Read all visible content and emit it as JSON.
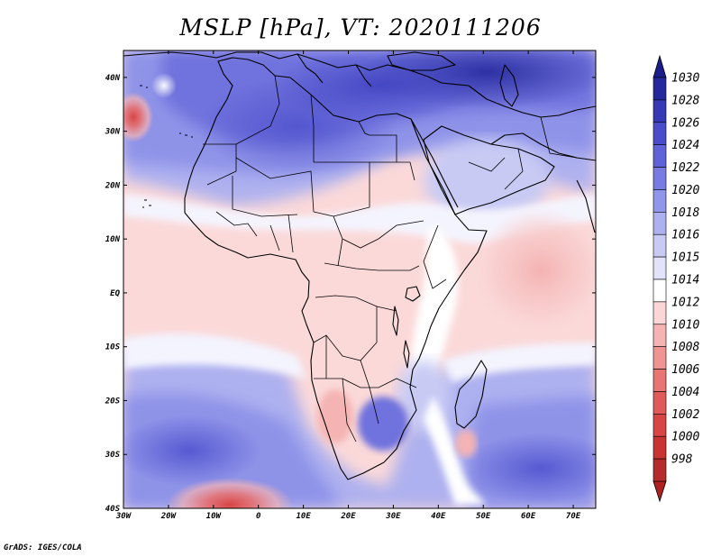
{
  "title": "MSLP [hPa], VT: 2020111206",
  "credit": "GrADS: IGES/COLA",
  "map": {
    "lon_range": [
      -30,
      75
    ],
    "lat_range": [
      -40,
      45
    ],
    "lon_ticks": [
      {
        "value": -30,
        "label": "30W"
      },
      {
        "value": -20,
        "label": "20W"
      },
      {
        "value": -10,
        "label": "10W"
      },
      {
        "value": 0,
        "label": "0"
      },
      {
        "value": 10,
        "label": "10E"
      },
      {
        "value": 20,
        "label": "20E"
      },
      {
        "value": 30,
        "label": "30E"
      },
      {
        "value": 40,
        "label": "40E"
      },
      {
        "value": 50,
        "label": "50E"
      },
      {
        "value": 60,
        "label": "60E"
      },
      {
        "value": 70,
        "label": "70E"
      }
    ],
    "lat_ticks": [
      {
        "value": 40,
        "label": "40N"
      },
      {
        "value": 30,
        "label": "30N"
      },
      {
        "value": 20,
        "label": "20N"
      },
      {
        "value": 10,
        "label": "10N"
      },
      {
        "value": 0,
        "label": "EQ"
      },
      {
        "value": -10,
        "label": "10S"
      },
      {
        "value": -20,
        "label": "20S"
      },
      {
        "value": -30,
        "label": "30S"
      },
      {
        "value": -40,
        "label": "40S"
      }
    ]
  },
  "colorbar": {
    "levels": [
      {
        "label": "998",
        "color": "#b52a2a"
      },
      {
        "label": "1000",
        "color": "#c83434"
      },
      {
        "label": "1002",
        "color": "#d84545"
      },
      {
        "label": "1004",
        "color": "#e15a5a"
      },
      {
        "label": "1006",
        "color": "#e87474"
      },
      {
        "label": "1008",
        "color": "#ef9393"
      },
      {
        "label": "1010",
        "color": "#f5b3b3"
      },
      {
        "label": "1012",
        "color": "#fbd6d6"
      },
      {
        "label": "1014",
        "color": "#ffffff"
      },
      {
        "label": "1015",
        "color": "#e2e3fb"
      },
      {
        "label": "1016",
        "color": "#c8caf4"
      },
      {
        "label": "1018",
        "color": "#aeb1ef"
      },
      {
        "label": "1020",
        "color": "#9296ea"
      },
      {
        "label": "1022",
        "color": "#787be2"
      },
      {
        "label": "1024",
        "color": "#5f62d8"
      },
      {
        "label": "1026",
        "color": "#4a4ccb"
      },
      {
        "label": "1028",
        "color": "#3638b6"
      },
      {
        "label": "1030",
        "color": "#24279d"
      }
    ],
    "top_color": "#1b1e8a",
    "bottom_color": "#b02020"
  }
}
